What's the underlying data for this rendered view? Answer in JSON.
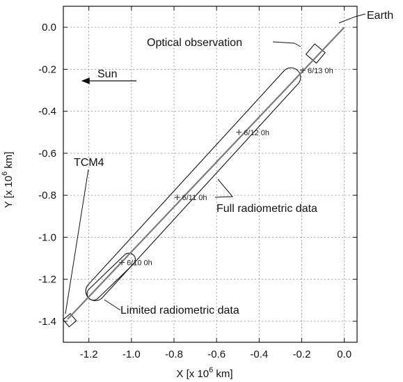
{
  "chart_data": {
    "type": "line",
    "xlabel_main": "X [x 10",
    "xlabel_exp": "6",
    "xlabel_unit": " km]",
    "ylabel_main": "Y [x 10",
    "ylabel_exp": "6",
    "ylabel_unit": " km]",
    "xlim": [
      -1.32,
      0.06
    ],
    "ylim": [
      -1.5,
      0.1
    ],
    "x_ticks": [
      -1.2,
      -1.0,
      -0.8,
      -0.6,
      -0.4,
      -0.2,
      0.0
    ],
    "x_tick_labels": [
      "-1.2",
      "-1.0",
      "-0.8",
      "-0.6",
      "-0.4",
      "-0.2",
      "0.0"
    ],
    "y_ticks": [
      0.0,
      -0.2,
      -0.4,
      -0.6,
      -0.8,
      -1.0,
      -1.2,
      -1.4
    ],
    "y_tick_labels": [
      "0.0",
      "-0.2",
      "-0.4",
      "-0.6",
      "-0.8",
      "-1.0",
      "-1.2",
      "-1.4"
    ],
    "grid": true,
    "trajectory": {
      "color": "#7a7a7a",
      "x": [
        -1.3,
        0.0
      ],
      "y": [
        -1.39,
        0.0
      ]
    },
    "date_markers": [
      {
        "label": "6/13 0h",
        "x": -0.195,
        "y": -0.205
      },
      {
        "label": "6/12 0h",
        "x": -0.495,
        "y": -0.5
      },
      {
        "label": "6/11 0h",
        "x": -0.785,
        "y": -0.81
      },
      {
        "label": "6/10 0h",
        "x": -1.045,
        "y": -1.12
      }
    ],
    "regions": [
      {
        "name": "full",
        "center_start": [
          -0.22,
          -0.205
        ],
        "center_end": [
          -1.2,
          -1.29
        ],
        "half_width": 0.045
      },
      {
        "name": "limited",
        "center_start": [
          -0.99,
          -1.085
        ],
        "center_end": [
          -1.2,
          -1.29
        ],
        "half_width": 0.03
      },
      {
        "name": "optical",
        "center_start": [
          -0.135,
          -0.125
        ],
        "center_end": [
          -0.135,
          -0.125
        ],
        "half_width": 0.032
      },
      {
        "name": "tcm4",
        "center_start": [
          -1.29,
          -1.395
        ],
        "center_end": [
          -1.29,
          -1.395
        ],
        "half_width": 0.022
      }
    ],
    "annotations": {
      "earth": "Earth",
      "optical": "Optical observation",
      "sun": "Sun",
      "tcm4": "TCM4",
      "full": "Full radiometric data",
      "limited": "Limited radiometric data"
    }
  }
}
